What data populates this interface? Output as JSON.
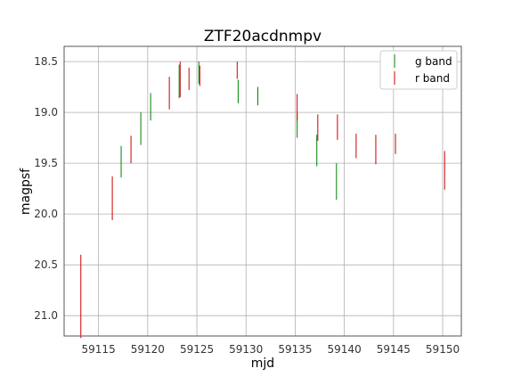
{
  "chart_data": {
    "type": "errorbar",
    "title": "ZTF20acdnmpv",
    "xlabel": "mjd",
    "ylabel": "magpsf",
    "xlim": [
      59111.5,
      59151.9
    ],
    "ylim": [
      21.2,
      18.35
    ],
    "y_inverted": true,
    "x_ticks": [
      59115,
      59120,
      59125,
      59130,
      59135,
      59140,
      59145,
      59150
    ],
    "y_ticks": [
      18.5,
      19.0,
      19.5,
      20.0,
      20.5,
      21.0
    ],
    "x_tick_labels": [
      "59115",
      "59120",
      "59125",
      "59130",
      "59135",
      "59140",
      "59145",
      "59150"
    ],
    "y_tick_labels": [
      "18.5",
      "19.0",
      "19.5",
      "20.0",
      "20.5",
      "21.0"
    ],
    "grid": true,
    "legend_position": "top-right",
    "series": [
      {
        "name": "g band",
        "color": "#008000",
        "points": [
          {
            "x": 59117.3,
            "y_low": 19.33,
            "y_high": 19.64
          },
          {
            "x": 59119.3,
            "y_low": 19.0,
            "y_high": 19.32
          },
          {
            "x": 59120.3,
            "y_low": 18.81,
            "y_high": 19.08
          },
          {
            "x": 59123.2,
            "y_low": 18.53,
            "y_high": 18.86
          },
          {
            "x": 59125.2,
            "y_low": 18.5,
            "y_high": 18.72
          },
          {
            "x": 59129.2,
            "y_low": 18.68,
            "y_high": 18.91
          },
          {
            "x": 59131.2,
            "y_low": 18.75,
            "y_high": 18.93
          },
          {
            "x": 59135.2,
            "y_low": 19.01,
            "y_high": 19.25
          },
          {
            "x": 59137.2,
            "y_low": 19.22,
            "y_high": 19.53
          },
          {
            "x": 59139.2,
            "y_low": 19.5,
            "y_high": 19.86
          }
        ]
      },
      {
        "name": "r band",
        "color": "#cc0000",
        "points": [
          {
            "x": 59113.2,
            "y_low": 20.4,
            "y_high": 21.22
          },
          {
            "x": 59116.4,
            "y_low": 19.63,
            "y_high": 20.06
          },
          {
            "x": 59118.3,
            "y_low": 19.23,
            "y_high": 19.5
          },
          {
            "x": 59122.2,
            "y_low": 18.65,
            "y_high": 18.97
          },
          {
            "x": 59123.3,
            "y_low": 18.5,
            "y_high": 18.85
          },
          {
            "x": 59124.2,
            "y_low": 18.56,
            "y_high": 18.78
          },
          {
            "x": 59125.3,
            "y_low": 18.54,
            "y_high": 18.74
          },
          {
            "x": 59129.1,
            "y_low": 18.5,
            "y_high": 18.67
          },
          {
            "x": 59135.2,
            "y_low": 18.82,
            "y_high": 19.08
          },
          {
            "x": 59137.3,
            "y_low": 19.02,
            "y_high": 19.28
          },
          {
            "x": 59139.3,
            "y_low": 19.02,
            "y_high": 19.27
          },
          {
            "x": 59141.2,
            "y_low": 19.21,
            "y_high": 19.45
          },
          {
            "x": 59143.2,
            "y_low": 19.22,
            "y_high": 19.51
          },
          {
            "x": 59145.2,
            "y_low": 19.21,
            "y_high": 19.41
          },
          {
            "x": 59150.2,
            "y_low": 19.38,
            "y_high": 19.76
          }
        ]
      }
    ]
  }
}
